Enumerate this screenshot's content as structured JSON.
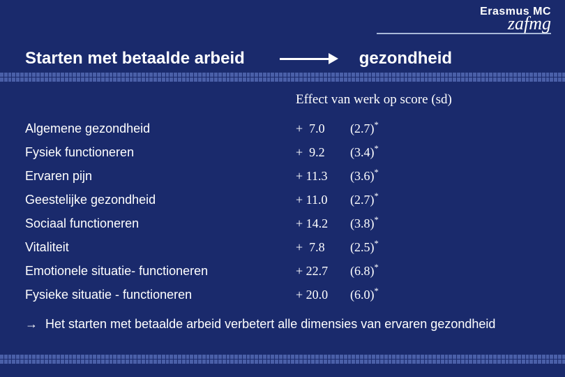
{
  "logo": {
    "line1": "Erasmus MC",
    "line2": "zafmg"
  },
  "title": {
    "left": "Starten met betaalde arbeid",
    "right": "gezondheid"
  },
  "effect_header": "Effect van werk op score (sd)",
  "rows": [
    {
      "label": "Algemene gezondheid",
      "value": "+  7.0",
      "sd": "(2.7)"
    },
    {
      "label": "Fysiek functioneren",
      "value": "+  9.2",
      "sd": "(3.4)"
    },
    {
      "label": "Ervaren pijn",
      "value": "+ 11.3",
      "sd": "(3.6)"
    },
    {
      "label": "Geestelijke gezondheid",
      "value": "+ 11.0",
      "sd": "(2.7)"
    },
    {
      "label": "Sociaal functioneren",
      "value": "+ 14.2",
      "sd": "(3.8)"
    },
    {
      "label": "Vitaliteit",
      "value": "+  7.8",
      "sd": "(2.5)"
    },
    {
      "label": "Emotionele situatie- functioneren",
      "value": "+ 22.7",
      "sd": "(6.8)"
    },
    {
      "label": "Fysieke situatie - functioneren",
      "value": "+ 20.0",
      "sd": "(6.0)"
    }
  ],
  "conclusion": "Het starten met betaalde arbeid verbetert alle dimensies van ervaren gezondheid",
  "colors": {
    "background": "#1a2a6c",
    "text": "#ffffff",
    "dash": "#4a5fa8"
  }
}
